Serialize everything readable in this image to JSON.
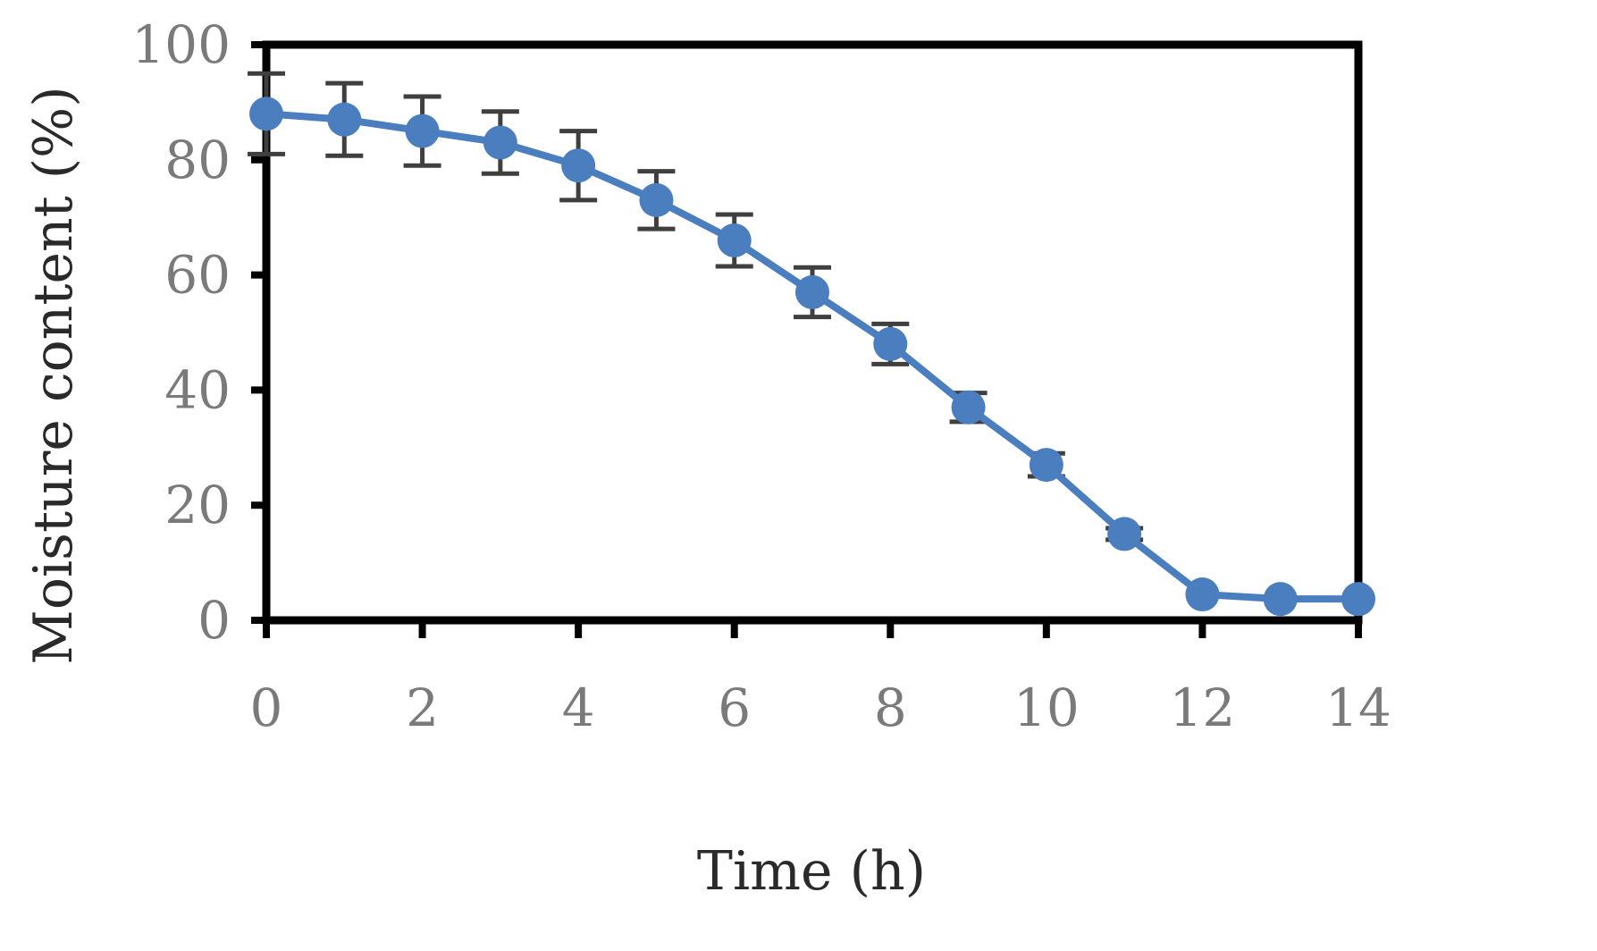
{
  "chart_data": {
    "type": "line",
    "title": "",
    "xlabel": "Time (h)",
    "ylabel": "Moisture content (%)",
    "xlim": [
      0,
      14
    ],
    "ylim": [
      0,
      100
    ],
    "x_ticks": [
      0,
      2,
      4,
      6,
      8,
      10,
      12,
      14
    ],
    "y_ticks": [
      0,
      20,
      40,
      60,
      80,
      100
    ],
    "grid": false,
    "legend": null,
    "series": [
      {
        "name": "Moisture content",
        "color": "#4a7ebf",
        "marker": "circle",
        "x": [
          0,
          1,
          2,
          3,
          4,
          5,
          6,
          7,
          8,
          9,
          10,
          11,
          12,
          13,
          14
        ],
        "values": [
          88,
          87,
          85,
          83,
          79,
          73,
          66,
          57,
          48,
          37,
          27,
          15,
          4.5,
          3.7,
          3.7
        ],
        "error": [
          7,
          6.3,
          6,
          5.4,
          6,
          5,
          4.5,
          4.3,
          3.5,
          2.5,
          2,
          1,
          0.5,
          0.5,
          0.5
        ]
      }
    ]
  },
  "colors": {
    "line": "#4a7ebf",
    "marker": "#4a7ebf",
    "error_bar": "#3f3f3f",
    "axis": "#000000",
    "tick_label": "#7a7a7a",
    "axis_title": "#2a2a2a"
  }
}
